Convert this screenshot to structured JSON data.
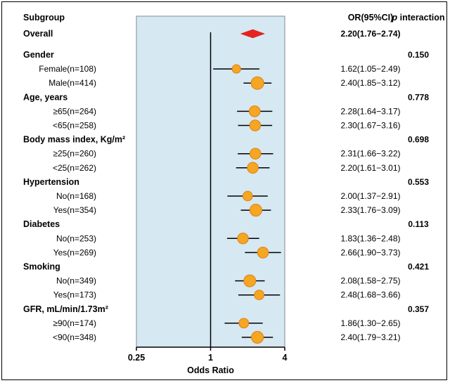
{
  "chart_data": {
    "type": "forest",
    "xscale": "log2",
    "xlim": [
      0.25,
      4
    ],
    "xticks": [
      "0.25",
      "1",
      "4"
    ],
    "xlabel": "Odds Ratio",
    "reference_line": 1,
    "headers": {
      "subgroup": "Subgroup",
      "or": "OR(95%CI)",
      "p_italic": "p",
      "p_rest": " interaction"
    },
    "overall": {
      "label": "Overall",
      "or": 2.2,
      "lo": 1.76,
      "hi": 2.74,
      "text": "2.20(1.76−2.74)"
    },
    "groups": [
      {
        "label": "Gender",
        "p": "0.150",
        "rows": [
          {
            "label": "Female(n=108)",
            "or": 1.62,
            "lo": 1.05,
            "hi": 2.49,
            "text": "1.62(1.05−2.49)",
            "weight": 108
          },
          {
            "label": "Male(n=414)",
            "or": 2.4,
            "lo": 1.85,
            "hi": 3.12,
            "text": "2.40(1.85−3.12)",
            "weight": 414
          }
        ]
      },
      {
        "label": "Age, years",
        "p": "0.778",
        "rows": [
          {
            "label": "≥65(n=264)",
            "or": 2.28,
            "lo": 1.64,
            "hi": 3.17,
            "text": "2.28(1.64−3.17)",
            "weight": 264
          },
          {
            "label": "<65(n=258)",
            "or": 2.3,
            "lo": 1.67,
            "hi": 3.16,
            "text": "2.30(1.67−3.16)",
            "weight": 258
          }
        ]
      },
      {
        "label": "Body mass index, Kg/m²",
        "p": "0.698",
        "rows": [
          {
            "label": "≥25(n=260)",
            "or": 2.31,
            "lo": 1.66,
            "hi": 3.22,
            "text": "2.31(1.66−3.22)",
            "weight": 260
          },
          {
            "label": "<25(n=262)",
            "or": 2.2,
            "lo": 1.61,
            "hi": 3.01,
            "text": "2.20(1.61−3.01)",
            "weight": 262
          }
        ]
      },
      {
        "label": "Hypertension",
        "p": "0.553",
        "rows": [
          {
            "label": "No(n=168)",
            "or": 2.0,
            "lo": 1.37,
            "hi": 2.91,
            "text": "2.00(1.37−2.91)",
            "weight": 168
          },
          {
            "label": "Yes(n=354)",
            "or": 2.33,
            "lo": 1.76,
            "hi": 3.09,
            "text": "2.33(1.76−3.09)",
            "weight": 354
          }
        ]
      },
      {
        "label": "Diabetes",
        "p": "0.113",
        "rows": [
          {
            "label": "No(n=253)",
            "or": 1.83,
            "lo": 1.36,
            "hi": 2.48,
            "text": "1.83(1.36−2.48)",
            "weight": 253
          },
          {
            "label": "Yes(n=269)",
            "or": 2.66,
            "lo": 1.9,
            "hi": 3.73,
            "text": "2.66(1.90−3.73)",
            "weight": 269
          }
        ]
      },
      {
        "label": "Smoking",
        "p": "0.421",
        "rows": [
          {
            "label": "No(n=349)",
            "or": 2.08,
            "lo": 1.58,
            "hi": 2.75,
            "text": "2.08(1.58−2.75)",
            "weight": 349
          },
          {
            "label": "Yes(n=173)",
            "or": 2.48,
            "lo": 1.68,
            "hi": 3.66,
            "text": "2.48(1.68−3.66)",
            "weight": 173
          }
        ]
      },
      {
        "label": "GFR, mL/min/1.73m²",
        "p": "0.357",
        "rows": [
          {
            "label": "≥90(n=174)",
            "or": 1.86,
            "lo": 1.3,
            "hi": 2.65,
            "text": "1.86(1.30−2.65)",
            "weight": 174
          },
          {
            "label": "<90(n=348)",
            "or": 2.4,
            "lo": 1.79,
            "hi": 3.21,
            "text": "2.40(1.79−3.21)",
            "weight": 348
          }
        ]
      }
    ],
    "colors": {
      "panel": "#d6e8f2",
      "marker_fill": "#f5a623",
      "marker_stroke": "#e07f10",
      "diamond": "#e8231e",
      "line": "#000000"
    }
  }
}
